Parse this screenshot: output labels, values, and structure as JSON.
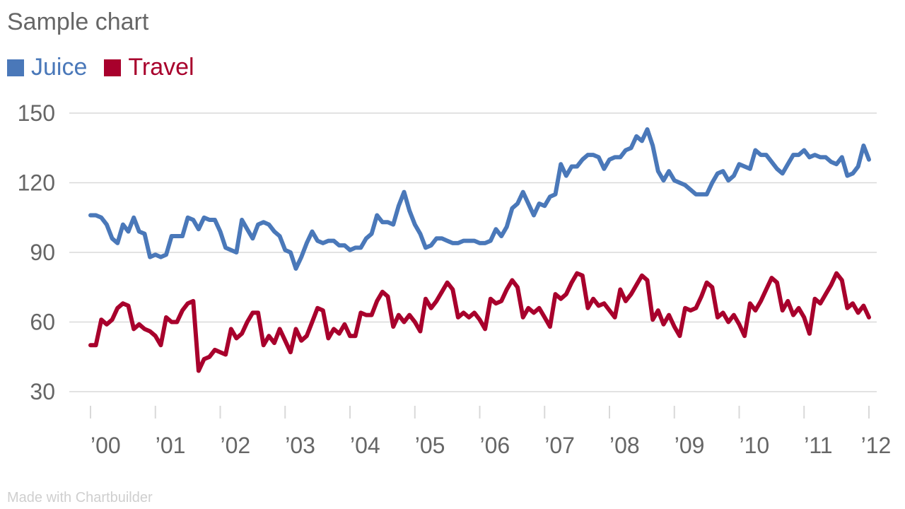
{
  "title": "Sample chart",
  "credit": "Made with Chartbuilder",
  "colors": {
    "Juice": "#4a78b9",
    "Travel": "#a8002c",
    "grid": "#d9d9d9",
    "text": "#666666"
  },
  "chart_data": {
    "type": "line",
    "title": "Sample chart",
    "xlabel": "",
    "ylabel": "",
    "ylim": [
      30,
      150
    ],
    "yticks": [
      30,
      60,
      90,
      120,
      150
    ],
    "xlim": [
      2000,
      2012
    ],
    "xticks": [
      {
        "value": 2000,
        "label": "’00"
      },
      {
        "value": 2001,
        "label": "’01"
      },
      {
        "value": 2002,
        "label": "’02"
      },
      {
        "value": 2003,
        "label": "’03"
      },
      {
        "value": 2004,
        "label": "’04"
      },
      {
        "value": 2005,
        "label": "’05"
      },
      {
        "value": 2006,
        "label": "’06"
      },
      {
        "value": 2007,
        "label": "’07"
      },
      {
        "value": 2008,
        "label": "’08"
      },
      {
        "value": 2009,
        "label": "’09"
      },
      {
        "value": 2010,
        "label": "’10"
      },
      {
        "value": 2011,
        "label": "’11"
      },
      {
        "value": 2012,
        "label": "’12"
      }
    ],
    "grid": true,
    "legend": "top-left",
    "series": [
      {
        "name": "Juice",
        "color": "#4a78b9",
        "values": [
          106,
          106,
          105,
          102,
          96,
          94,
          102,
          99,
          105,
          99,
          98,
          88,
          89,
          88,
          89,
          97,
          97,
          97,
          105,
          104,
          100,
          105,
          104,
          104,
          99,
          92,
          91,
          90,
          104,
          100,
          96,
          102,
          103,
          102,
          99,
          97,
          91,
          90,
          83,
          88,
          94,
          99,
          95,
          94,
          95,
          95,
          93,
          93,
          91,
          92,
          92,
          96,
          98,
          106,
          103,
          103,
          102,
          110,
          116,
          108,
          102,
          98,
          92,
          93,
          96,
          96,
          95,
          94,
          94,
          95,
          95,
          95,
          94,
          94,
          95,
          100,
          97,
          101,
          109,
          111,
          116,
          111,
          106,
          111,
          110,
          114,
          115,
          128,
          123,
          127,
          127,
          130,
          132,
          132,
          131,
          126,
          130,
          131,
          131,
          134,
          135,
          140,
          138,
          143,
          136,
          125,
          121,
          125,
          121,
          120,
          119,
          117,
          115,
          115,
          115,
          120,
          124,
          125,
          121,
          123,
          128,
          127,
          126,
          134,
          132,
          132,
          129,
          126,
          124,
          128,
          132,
          132,
          134,
          131,
          132,
          131,
          131,
          129,
          128,
          131,
          123,
          124,
          127,
          136,
          130
        ]
      },
      {
        "name": "Travel",
        "color": "#a8002c",
        "values": [
          50,
          50,
          61,
          59,
          61,
          66,
          68,
          67,
          57,
          59,
          57,
          56,
          54,
          50,
          62,
          60,
          60,
          65,
          68,
          69,
          39,
          44,
          45,
          48,
          47,
          46,
          57,
          53,
          55,
          60,
          64,
          64,
          50,
          54,
          51,
          57,
          52,
          47,
          57,
          52,
          54,
          60,
          66,
          65,
          53,
          57,
          55,
          59,
          54,
          54,
          64,
          63,
          63,
          69,
          73,
          71,
          58,
          63,
          60,
          63,
          60,
          56,
          70,
          66,
          69,
          73,
          77,
          74,
          62,
          64,
          62,
          64,
          61,
          57,
          70,
          68,
          69,
          74,
          78,
          75,
          62,
          66,
          64,
          66,
          62,
          58,
          72,
          70,
          72,
          77,
          81,
          80,
          66,
          70,
          67,
          68,
          65,
          62,
          74,
          69,
          72,
          76,
          80,
          78,
          61,
          65,
          59,
          63,
          58,
          54,
          66,
          65,
          66,
          71,
          77,
          75,
          62,
          64,
          60,
          63,
          59,
          54,
          68,
          65,
          69,
          74,
          79,
          77,
          65,
          69,
          63,
          66,
          62,
          55,
          70,
          68,
          72,
          76,
          81,
          78,
          66,
          68,
          64,
          67,
          62
        ]
      }
    ]
  }
}
